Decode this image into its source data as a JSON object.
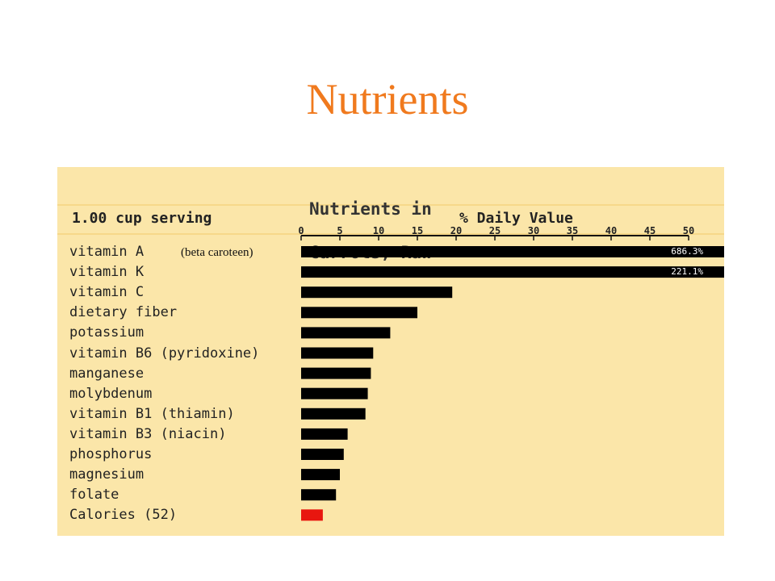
{
  "slide": {
    "title": "Nutrients"
  },
  "panel": {
    "title_line1": "Nutrients in",
    "title_line2": "Carrots, Raw",
    "serving": "1.00 cup serving",
    "dv_label": "% Daily Value",
    "note": "(beta caroteen)"
  },
  "chart_data": {
    "type": "bar",
    "orientation": "horizontal",
    "title": "Nutrients in Carrots, Raw",
    "xlabel": "% Daily Value",
    "xlim": [
      0,
      50
    ],
    "ticks": [
      0,
      5,
      10,
      15,
      20,
      25,
      30,
      35,
      40,
      45,
      50
    ],
    "categories": [
      "vitamin A",
      "vitamin K",
      "vitamin C",
      "dietary fiber",
      "potassium",
      "vitamin B6 (pyridoxine)",
      "manganese",
      "molybdenum",
      "vitamin B1 (thiamin)",
      "vitamin B3 (niacin)",
      "phosphorus",
      "magnesium",
      "folate",
      "Calories (52)"
    ],
    "values": [
      686.3,
      221.1,
      19.5,
      15,
      11.5,
      9.3,
      9,
      8.6,
      8.3,
      6,
      5.5,
      5,
      4.5,
      2.8
    ],
    "bar_labels": [
      "686.3%",
      "221.1%",
      "",
      "",
      "",
      "",
      "",
      "",
      "",
      "",
      "",
      "",
      "",
      ""
    ],
    "bar_colors": [
      "#000000",
      "#000000",
      "#000000",
      "#000000",
      "#000000",
      "#000000",
      "#000000",
      "#000000",
      "#000000",
      "#000000",
      "#000000",
      "#000000",
      "#000000",
      "#e8160f"
    ],
    "grid": false
  }
}
